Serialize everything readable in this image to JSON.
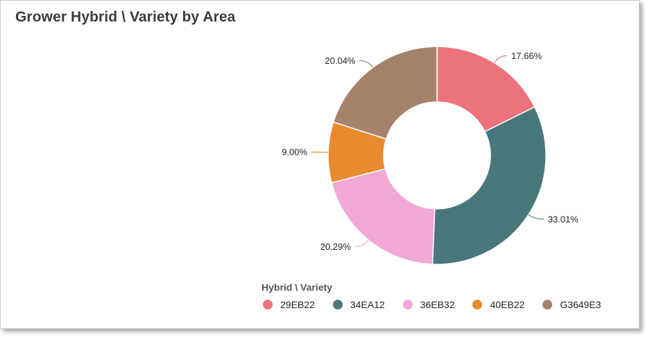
{
  "title": "Grower Hybrid \\ Variety by Area",
  "chart_data": {
    "type": "donut",
    "title": "Grower Hybrid \\ Variety by Area",
    "legend_title": "Hybrid \\ Variety",
    "legend_placement": "bottom",
    "series": [
      {
        "name": "29EB22",
        "value": 17.66,
        "label": "17.66%",
        "color": "#ec727c"
      },
      {
        "name": "34EA12",
        "value": 33.01,
        "label": "33.01%",
        "color": "#49787c"
      },
      {
        "name": "36EB32",
        "value": 20.29,
        "label": "20.29%",
        "color": "#f0a8d4"
      },
      {
        "name": "40EB22",
        "value": 9.0,
        "label": "9.00%",
        "color": "#e88a30"
      },
      {
        "name": "G3649E3",
        "value": 20.04,
        "label": "20.04%",
        "color": "#a7826b"
      }
    ]
  }
}
